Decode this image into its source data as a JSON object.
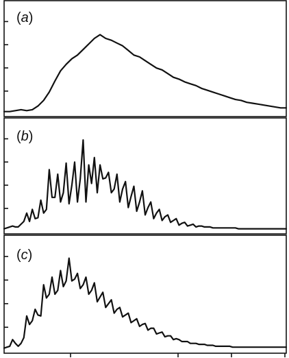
{
  "chart_data": [
    {
      "type": "line",
      "panel_label": "(a)",
      "label_open": "(",
      "label_letter": "a",
      "label_close": ")",
      "xlabel": "",
      "ylabel": "",
      "xlim": [
        0,
        100
      ],
      "ylim": [
        0,
        100
      ],
      "grid": false,
      "series": [
        {
          "x": [
            0,
            2,
            4,
            6,
            8,
            10,
            12,
            14,
            16,
            18,
            20,
            22,
            24,
            26,
            28,
            30,
            32,
            34,
            36,
            38,
            40,
            42,
            44,
            46,
            48,
            50,
            52,
            54,
            56,
            58,
            60,
            62,
            64,
            66,
            68,
            70,
            72,
            74,
            76,
            78,
            80,
            82,
            84,
            86,
            88,
            90,
            92,
            94,
            96,
            98,
            100
          ],
          "values": [
            1,
            1,
            2,
            3,
            2,
            3,
            7,
            13,
            22,
            34,
            45,
            52,
            58,
            62,
            68,
            74,
            80,
            84,
            80,
            78,
            75,
            72,
            67,
            62,
            60,
            56,
            52,
            48,
            46,
            42,
            38,
            36,
            33,
            31,
            29,
            26,
            24,
            22,
            20,
            18,
            16,
            14,
            13,
            11,
            10,
            9,
            8,
            7,
            6,
            5,
            5
          ]
        }
      ]
    },
    {
      "type": "line",
      "panel_label": "(b)",
      "label_open": "(",
      "label_letter": "b",
      "label_close": ")",
      "xlabel": "",
      "ylabel": "",
      "xlim": [
        0,
        100
      ],
      "ylim": [
        0,
        100
      ],
      "grid": false,
      "series": [
        {
          "x": [
            0,
            1,
            2,
            3,
            4,
            5,
            6,
            7,
            8,
            9,
            10,
            11,
            12,
            13,
            14,
            15,
            16,
            17,
            18,
            19,
            20,
            21,
            22,
            23,
            24,
            25,
            26,
            27,
            28,
            29,
            30,
            31,
            32,
            33,
            34,
            35,
            36,
            37,
            38,
            39,
            40,
            41,
            42,
            43,
            44,
            45,
            46,
            47,
            48,
            49,
            50,
            51,
            52,
            53,
            54,
            55,
            56,
            57,
            58,
            59,
            60,
            61,
            62,
            63,
            64,
            65,
            66,
            67,
            68,
            69,
            70,
            71,
            72,
            73,
            74,
            75,
            76,
            77,
            78,
            79,
            80,
            81,
            82,
            83,
            84,
            85,
            86,
            87,
            88,
            89,
            90,
            91,
            92,
            93,
            94,
            95,
            96,
            97,
            98,
            99,
            100
          ],
          "values": [
            1,
            2,
            3,
            4,
            3,
            3,
            6,
            9,
            18,
            9,
            22,
            12,
            13,
            32,
            18,
            22,
            65,
            35,
            35,
            60,
            30,
            40,
            72,
            28,
            48,
            73,
            30,
            55,
            97,
            30,
            70,
            50,
            78,
            40,
            70,
            55,
            56,
            62,
            40,
            44,
            60,
            30,
            44,
            52,
            24,
            36,
            47,
            20,
            30,
            42,
            16,
            24,
            30,
            12,
            18,
            22,
            10,
            14,
            16,
            8,
            10,
            12,
            5,
            7,
            8,
            4,
            5,
            6,
            3,
            4,
            4,
            3,
            3,
            3,
            2,
            2,
            2,
            2,
            2,
            2,
            2,
            2,
            2,
            1,
            1,
            1,
            1,
            1,
            1,
            1,
            1,
            1,
            1,
            1,
            1,
            1,
            1,
            1,
            1,
            1,
            1
          ]
        }
      ]
    },
    {
      "type": "line",
      "panel_label": "(c)",
      "label_open": "(",
      "label_letter": "c",
      "label_close": ")",
      "xlabel": "",
      "ylabel": "",
      "xlim": [
        0,
        100
      ],
      "ylim": [
        0,
        100
      ],
      "grid": false,
      "series": [
        {
          "x": [
            0,
            1,
            2,
            3,
            4,
            5,
            6,
            7,
            8,
            9,
            10,
            11,
            12,
            13,
            14,
            15,
            16,
            17,
            18,
            19,
            20,
            21,
            22,
            23,
            24,
            25,
            26,
            27,
            28,
            29,
            30,
            31,
            32,
            33,
            34,
            35,
            36,
            37,
            38,
            39,
            40,
            41,
            42,
            43,
            44,
            45,
            46,
            47,
            48,
            49,
            50,
            51,
            52,
            53,
            54,
            55,
            56,
            57,
            58,
            59,
            60,
            61,
            62,
            63,
            64,
            65,
            66,
            67,
            68,
            69,
            70,
            71,
            72,
            73,
            74,
            75,
            76,
            77,
            78,
            79,
            80,
            81,
            82,
            83,
            84,
            85,
            86,
            87,
            88,
            89,
            90,
            91,
            92,
            93,
            94,
            95,
            96,
            97,
            98,
            99,
            100
          ],
          "values": [
            1,
            2,
            3,
            10,
            6,
            3,
            6,
            12,
            35,
            26,
            30,
            42,
            36,
            35,
            68,
            54,
            58,
            76,
            58,
            62,
            83,
            66,
            72,
            96,
            72,
            74,
            80,
            64,
            68,
            76,
            58,
            62,
            70,
            50,
            55,
            60,
            44,
            48,
            52,
            38,
            42,
            44,
            34,
            36,
            38,
            28,
            30,
            32,
            24,
            26,
            27,
            20,
            22,
            22,
            16,
            17,
            18,
            13,
            14,
            14,
            10,
            11,
            10,
            8,
            8,
            8,
            6,
            6,
            6,
            5,
            5,
            5,
            4,
            4,
            4,
            3,
            3,
            3,
            3,
            3,
            3,
            2,
            2,
            2,
            2,
            2,
            2,
            2,
            2,
            2,
            2,
            2,
            2,
            2,
            2,
            2,
            2,
            2,
            2,
            2,
            2
          ]
        }
      ]
    }
  ]
}
